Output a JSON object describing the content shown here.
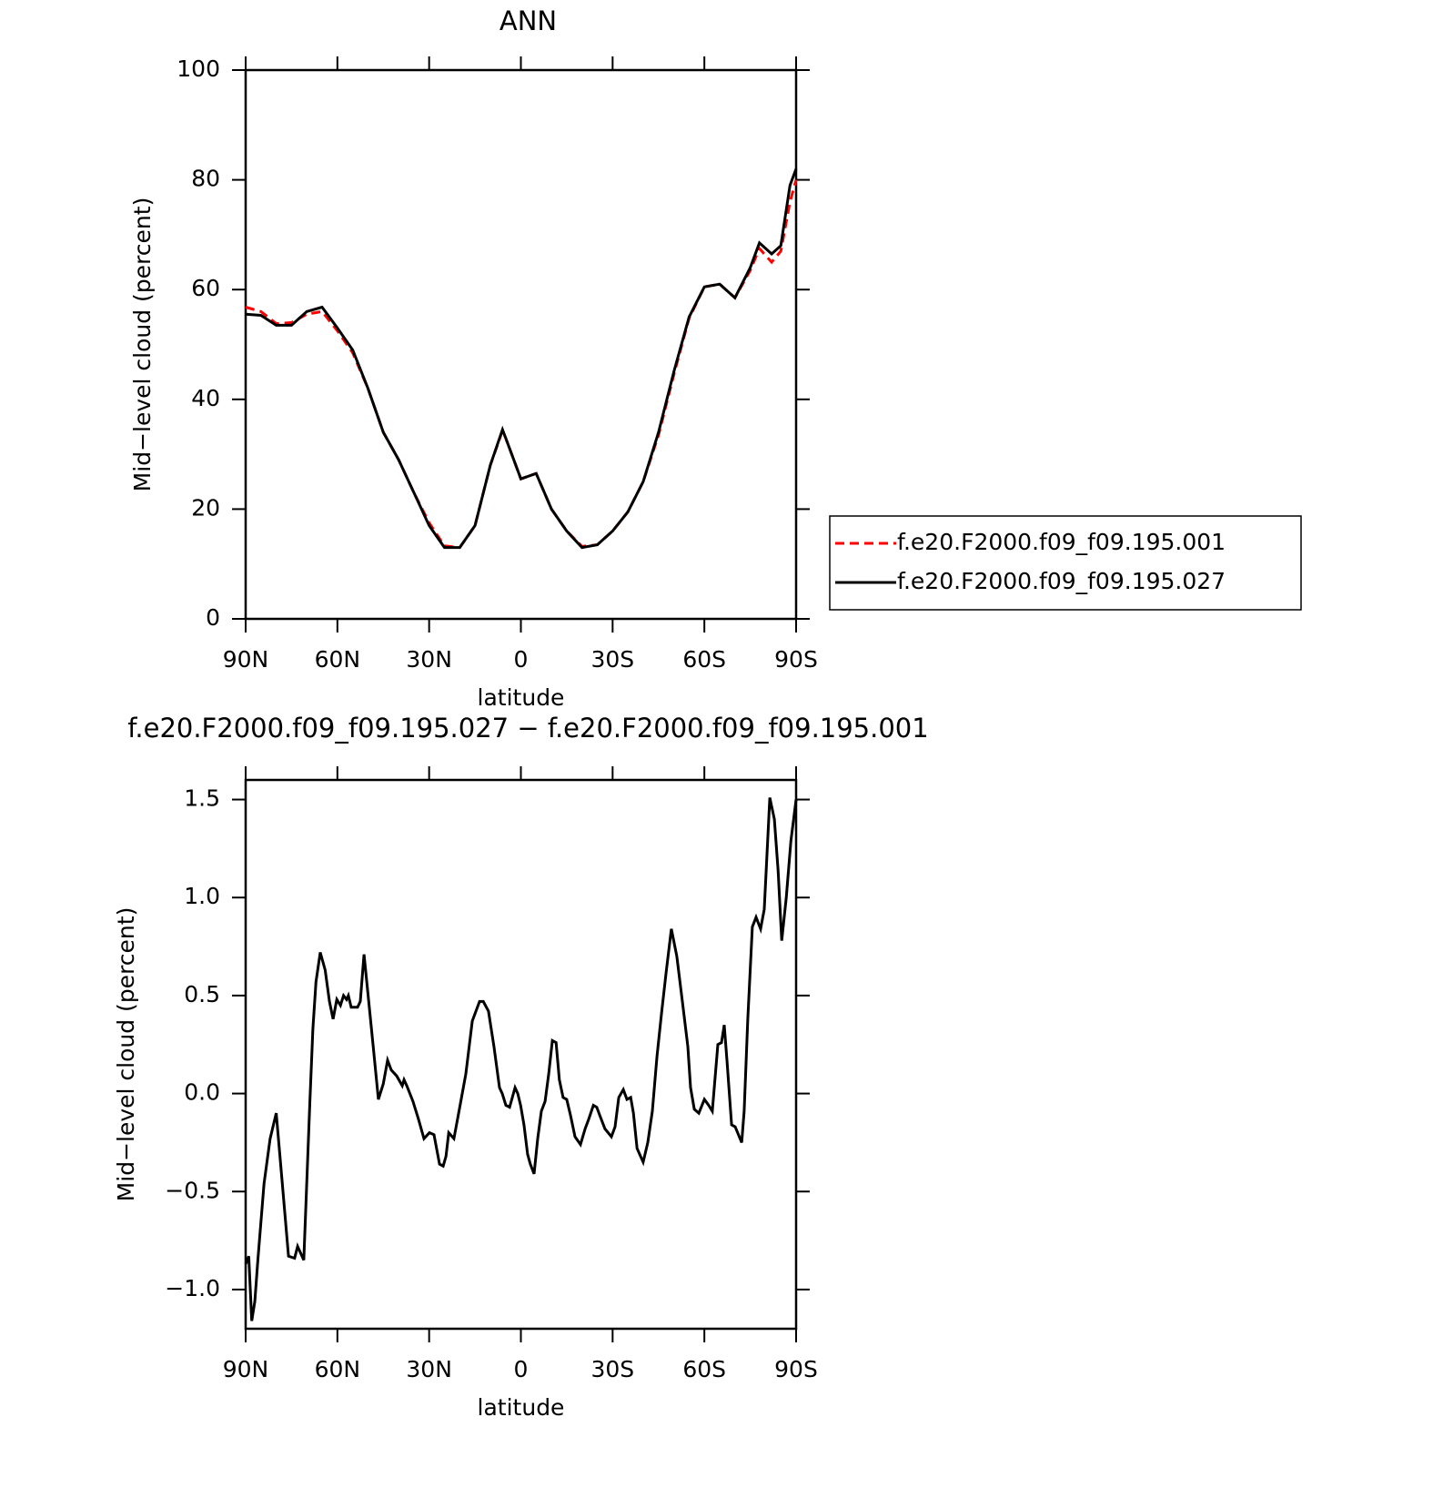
{
  "chart_data": [
    {
      "type": "line",
      "title": "ANN",
      "xlabel": "latitude",
      "ylabel": "Mid−level cloud (percent)",
      "xlim": [
        90,
        -90
      ],
      "xticks": [
        {
          "value": 90,
          "label": "90N"
        },
        {
          "value": 60,
          "label": "60N"
        },
        {
          "value": 30,
          "label": "30N"
        },
        0,
        {
          "value": -30,
          "label": "30S"
        },
        {
          "value": -60,
          "label": "60S"
        },
        {
          "value": -90,
          "label": "90S"
        }
      ],
      "ylim": [
        0,
        100
      ],
      "yticks": [
        0,
        20,
        40,
        60,
        80,
        100
      ],
      "legend": "right",
      "x": [
        90,
        85,
        80,
        75,
        70,
        65,
        60,
        55,
        50,
        45,
        40,
        35,
        30,
        25,
        20,
        15,
        10,
        6,
        5,
        0,
        -5,
        -10,
        -15,
        -20,
        -25,
        -30,
        -35,
        -40,
        -45,
        -50,
        -55,
        -60,
        -65,
        -70,
        -75,
        -78,
        -82,
        -85,
        -88,
        -90
      ],
      "series": [
        {
          "name": "f.e20.F2000.f09_f09.195.001",
          "color": "#ff0000",
          "dash": true,
          "values": [
            56.8,
            56,
            53.8,
            54,
            55.5,
            56,
            52.5,
            48.5,
            42,
            34,
            29,
            23,
            17.5,
            13.3,
            13,
            17,
            28,
            34.3,
            33,
            25.5,
            26.5,
            20,
            16,
            13.2,
            13.5,
            16,
            19.5,
            25,
            33.5,
            44.5,
            54.8,
            60.5,
            61,
            58.5,
            63.5,
            67.5,
            65,
            67,
            76,
            80
          ]
        },
        {
          "name": "f.e20.F2000.f09_f09.195.027",
          "color": "#000000",
          "dash": false,
          "values": [
            55.5,
            55.3,
            53.5,
            53.5,
            56,
            56.8,
            53,
            49,
            42,
            34,
            29,
            23,
            17,
            13,
            13,
            17,
            28,
            34.5,
            33,
            25.5,
            26.5,
            20,
            16,
            13,
            13.5,
            16,
            19.5,
            25,
            34,
            45,
            55,
            60.5,
            61,
            58.5,
            64,
            68.5,
            66.5,
            68,
            79,
            82
          ]
        }
      ]
    },
    {
      "type": "line",
      "title": "f.e20.F2000.f09_f09.195.027 − f.e20.F2000.f09_f09.195.001",
      "xlabel": "latitude",
      "ylabel": "Mid−level cloud (percent)",
      "xlim": [
        90,
        -90
      ],
      "xticks": [
        {
          "value": 90,
          "label": "90N"
        },
        {
          "value": 60,
          "label": "60N"
        },
        {
          "value": 30,
          "label": "30N"
        },
        0,
        {
          "value": -30,
          "label": "30S"
        },
        {
          "value": -60,
          "label": "60S"
        },
        {
          "value": -90,
          "label": "90S"
        }
      ],
      "ylim": [
        -1.2,
        1.6
      ],
      "yticks": [
        {
          "value": -1,
          "label": "−1.0"
        },
        {
          "value": -0.5,
          "label": "−0.5"
        },
        {
          "value": 0,
          "label": "0.0"
        },
        0.5,
        {
          "value": 1,
          "label": "1.0"
        },
        1.5
      ],
      "x": [
        90,
        89,
        88,
        87,
        86,
        84,
        82,
        80,
        78,
        76,
        74,
        73,
        71,
        69,
        68,
        67,
        65.6,
        64,
        62.6,
        61.4,
        60.2,
        59,
        58,
        57,
        56.4,
        55.5,
        53.4,
        52.5,
        51.3,
        50,
        48.3,
        46.6,
        45,
        43.6,
        42.4,
        40.6,
        38.8,
        38.2,
        37.3,
        35.3,
        33.5,
        31.7,
        29.9,
        28.4,
        26.6,
        25.4,
        24.5,
        23.6,
        21.9,
        20.1,
        18,
        15.9,
        13.5,
        12.3,
        10.6,
        8.8,
        7,
        6.1,
        4.9,
        3.7,
        2.8,
        1.9,
        1,
        0.1,
        -1,
        -2.2,
        -3.1,
        -4.3,
        -5.5,
        -6.7,
        -7.9,
        -9.1,
        -10.3,
        -11.5,
        -12.6,
        -13.8,
        -15,
        -16.2,
        -17.7,
        -19.5,
        -21,
        -22.2,
        -23.7,
        -24.8,
        -26,
        -27.5,
        -29.6,
        -30.8,
        -32,
        -33.5,
        -34.7,
        -35.9,
        -36.8,
        -38,
        -40,
        -41.5,
        -43,
        -44.5,
        -46,
        -47.5,
        -49.2,
        -51,
        -52.8,
        -54.6,
        -55.5,
        -56.7,
        -58.2,
        -60,
        -61.4,
        -62.6,
        -64.4,
        -65.6,
        -66.5,
        -67.4,
        -68.9,
        -70.1,
        -72.2,
        -73,
        -74.2,
        -75.7,
        -76.9,
        -78.4,
        -79.6,
        -81.4,
        -82.9,
        -84.1,
        -85.3,
        -86.8,
        -88.3,
        -90
      ],
      "series": [
        {
          "color": "#000000",
          "values": [
            -0.87,
            -0.83,
            -1.16,
            -1.06,
            -0.85,
            -0.46,
            -0.23,
            -0.1,
            -0.46,
            -0.83,
            -0.84,
            -0.78,
            -0.85,
            -0.04,
            0.33,
            0.57,
            0.72,
            0.63,
            0.47,
            0.38,
            0.48,
            0.45,
            0.5,
            0.48,
            0.5,
            0.44,
            0.44,
            0.47,
            0.71,
            0.51,
            0.24,
            -0.03,
            0.05,
            0.17,
            0.12,
            0.09,
            0.04,
            0.07,
            0.04,
            -0.04,
            -0.13,
            -0.23,
            -0.2,
            -0.21,
            -0.36,
            -0.37,
            -0.32,
            -0.2,
            -0.23,
            -0.08,
            0.1,
            0.37,
            0.47,
            0.47,
            0.42,
            0.24,
            0.03,
            0,
            -0.06,
            -0.07,
            -0.02,
            0.03,
            0,
            -0.06,
            -0.16,
            -0.31,
            -0.36,
            -0.41,
            -0.23,
            -0.09,
            -0.04,
            0.1,
            0.27,
            0.26,
            0.07,
            -0.02,
            -0.03,
            -0.11,
            -0.22,
            -0.26,
            -0.18,
            -0.13,
            -0.06,
            -0.07,
            -0.12,
            -0.18,
            -0.22,
            -0.17,
            -0.02,
            0.02,
            -0.03,
            -0.02,
            -0.1,
            -0.28,
            -0.35,
            -0.25,
            -0.09,
            0.19,
            0.41,
            0.62,
            0.84,
            0.7,
            0.47,
            0.24,
            0.03,
            -0.08,
            -0.1,
            -0.03,
            -0.06,
            -0.09,
            0.25,
            0.26,
            0.35,
            0.17,
            -0.16,
            -0.17,
            -0.25,
            -0.09,
            0.38,
            0.85,
            0.9,
            0.84,
            0.94,
            1.51,
            1.4,
            1.14,
            0.78,
            1,
            1.29,
            1.5
          ]
        }
      ]
    }
  ]
}
